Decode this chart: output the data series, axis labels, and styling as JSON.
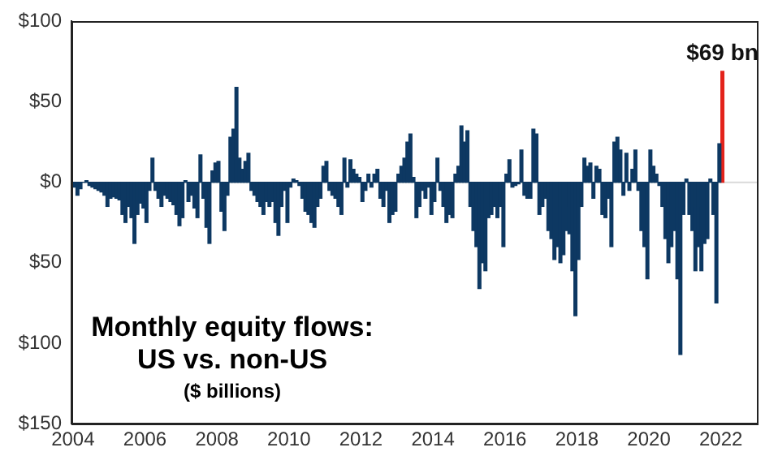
{
  "chart_data": {
    "type": "bar",
    "title": "Monthly equity flows: US vs. non-US",
    "subtitle": "($ billions)",
    "x": [
      "2004-01",
      "2004-02",
      "2004-03",
      "2004-04",
      "2004-05",
      "2004-06",
      "2004-07",
      "2004-08",
      "2004-09",
      "2004-10",
      "2004-11",
      "2004-12",
      "2005-01",
      "2005-02",
      "2005-03",
      "2005-04",
      "2005-05",
      "2005-06",
      "2005-07",
      "2005-08",
      "2005-09",
      "2005-10",
      "2005-11",
      "2005-12",
      "2006-01",
      "2006-02",
      "2006-03",
      "2006-04",
      "2006-05",
      "2006-06",
      "2006-07",
      "2006-08",
      "2006-09",
      "2006-10",
      "2006-11",
      "2006-12",
      "2007-01",
      "2007-02",
      "2007-03",
      "2007-04",
      "2007-05",
      "2007-06",
      "2007-07",
      "2007-08",
      "2007-09",
      "2007-10",
      "2007-11",
      "2007-12",
      "2008-01",
      "2008-02",
      "2008-03",
      "2008-04",
      "2008-05",
      "2008-06",
      "2008-07",
      "2008-08",
      "2008-09",
      "2008-10",
      "2008-11",
      "2008-12",
      "2009-01",
      "2009-02",
      "2009-03",
      "2009-04",
      "2009-05",
      "2009-06",
      "2009-07",
      "2009-08",
      "2009-09",
      "2009-10",
      "2009-11",
      "2009-12",
      "2010-01",
      "2010-02",
      "2010-03",
      "2010-04",
      "2010-05",
      "2010-06",
      "2010-07",
      "2010-08",
      "2010-09",
      "2010-10",
      "2010-11",
      "2010-12",
      "2011-01",
      "2011-02",
      "2011-03",
      "2011-04",
      "2011-05",
      "2011-06",
      "2011-07",
      "2011-08",
      "2011-09",
      "2011-10",
      "2011-11",
      "2011-12",
      "2012-01",
      "2012-02",
      "2012-03",
      "2012-04",
      "2012-05",
      "2012-06",
      "2012-07",
      "2012-08",
      "2012-09",
      "2012-10",
      "2012-11",
      "2012-12",
      "2013-01",
      "2013-02",
      "2013-03",
      "2013-04",
      "2013-05",
      "2013-06",
      "2013-07",
      "2013-08",
      "2013-09",
      "2013-10",
      "2013-11",
      "2013-12",
      "2014-01",
      "2014-02",
      "2014-03",
      "2014-04",
      "2014-05",
      "2014-06",
      "2014-07",
      "2014-08",
      "2014-09",
      "2014-10",
      "2014-11",
      "2014-12",
      "2015-01",
      "2015-02",
      "2015-03",
      "2015-04",
      "2015-05",
      "2015-06",
      "2015-07",
      "2015-08",
      "2015-09",
      "2015-10",
      "2015-11",
      "2015-12",
      "2016-01",
      "2016-02",
      "2016-03",
      "2016-04",
      "2016-05",
      "2016-06",
      "2016-07",
      "2016-08",
      "2016-09",
      "2016-10",
      "2016-11",
      "2016-12",
      "2017-01",
      "2017-02",
      "2017-03",
      "2017-04",
      "2017-05",
      "2017-06",
      "2017-07",
      "2017-08",
      "2017-09",
      "2017-10",
      "2017-11",
      "2017-12",
      "2018-01",
      "2018-02",
      "2018-03",
      "2018-04",
      "2018-05",
      "2018-06",
      "2018-07",
      "2018-08",
      "2018-09",
      "2018-10",
      "2018-11",
      "2018-12",
      "2019-01",
      "2019-02",
      "2019-03",
      "2019-04",
      "2019-05",
      "2019-06",
      "2019-07",
      "2019-08",
      "2019-09",
      "2019-10",
      "2019-11",
      "2019-12",
      "2020-01",
      "2020-02",
      "2020-03",
      "2020-04",
      "2020-05",
      "2020-06",
      "2020-07",
      "2020-08",
      "2020-09",
      "2020-10",
      "2020-11",
      "2020-12",
      "2021-01",
      "2021-02",
      "2021-03",
      "2021-04",
      "2021-05",
      "2021-06",
      "2021-07",
      "2021-08",
      "2021-09",
      "2021-10",
      "2021-11",
      "2021-12"
    ],
    "series": [
      {
        "color": "#0d3862",
        "values": [
          -3,
          -8,
          -4,
          0,
          1,
          -2,
          -3,
          -4,
          -5,
          -6,
          -8,
          -15,
          -10,
          -9,
          -10,
          -11,
          -20,
          -25,
          -15,
          -22,
          -38,
          -20,
          -13,
          -16,
          -25,
          -5,
          15,
          -5,
          -10,
          -15,
          -8,
          -10,
          -12,
          -14,
          -20,
          -27,
          -22,
          1,
          -12,
          -8,
          -16,
          -22,
          17,
          -10,
          -28,
          -38,
          7,
          12,
          13,
          -18,
          -30,
          -8,
          28,
          33,
          59,
          15,
          8,
          13,
          18,
          -5,
          -8,
          -12,
          -15,
          -20,
          -12,
          -15,
          -12,
          -25,
          -33,
          -15,
          -5,
          -25,
          -3,
          2,
          1,
          -2,
          -10,
          -18,
          -20,
          -25,
          -28,
          -15,
          -10,
          10,
          13,
          -5,
          -8,
          -10,
          -15,
          -20,
          15,
          -3,
          14,
          8,
          5,
          3,
          -12,
          -5,
          5,
          -3,
          5,
          8,
          -10,
          -15,
          -5,
          -25,
          -20,
          -18,
          5,
          10,
          15,
          25,
          30,
          3,
          -22,
          -15,
          -5,
          -10,
          -3,
          -20,
          -12,
          15,
          -5,
          -15,
          -25,
          -20,
          -22,
          5,
          10,
          35,
          25,
          32,
          -15,
          -30,
          -40,
          -66,
          -50,
          -55,
          -22,
          -20,
          -15,
          -22,
          -15,
          -40,
          5,
          14,
          -3,
          -2,
          -1,
          20,
          -8,
          -10,
          -10,
          33,
          30,
          -20,
          -15,
          -10,
          -30,
          -35,
          -48,
          -40,
          -50,
          -45,
          -30,
          -32,
          -55,
          -83,
          -48,
          -15,
          15,
          10,
          12,
          -10,
          10,
          8,
          -20,
          -22,
          -10,
          -40,
          25,
          28,
          20,
          -8,
          18,
          -5,
          8,
          20,
          -5,
          -30,
          -40,
          -60,
          20,
          10,
          5,
          -2,
          -15,
          -35,
          -50,
          -40,
          -30,
          -60,
          -107,
          -20,
          2,
          -20,
          -30,
          -55,
          -40,
          -55,
          -38,
          -35,
          2,
          -20,
          -75,
          24
        ]
      },
      {
        "color": "#e3231b",
        "x": [
          "2022-01"
        ],
        "values": [
          69
        ]
      }
    ],
    "xlim": [
      "2003-12",
      "2023"
    ],
    "xticks": [
      "2004",
      "2006",
      "2008",
      "2010",
      "2012",
      "2014",
      "2016",
      "2018",
      "2020",
      "2022"
    ],
    "ylim": [
      -150,
      100
    ],
    "yticks": [
      {
        "value": 100,
        "label": "$100"
      },
      {
        "value": 50,
        "label": "$50"
      },
      {
        "value": 0,
        "label": "$0"
      },
      {
        "value": -50,
        "label": "$50"
      },
      {
        "value": -100,
        "label": "$100"
      },
      {
        "value": -150,
        "label": "$150"
      }
    ],
    "ref_lines": [
      {
        "axis": "y",
        "value": 0,
        "color": "#d9d9d9"
      }
    ],
    "annotations": [
      {
        "text": "$69 bn",
        "x": "2022-01",
        "y": 69
      }
    ],
    "grid": false,
    "legend": false
  }
}
